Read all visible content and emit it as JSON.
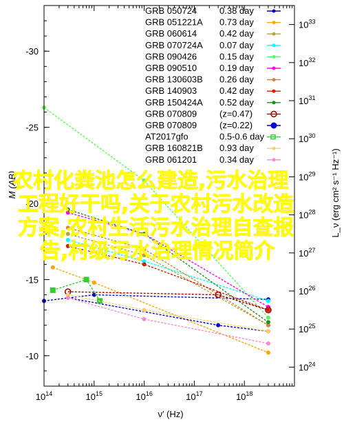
{
  "chart_data": {
    "type": "line",
    "title": "",
    "xlabel": "ν′ (Hz)",
    "ylabel_left": "M (AB)",
    "ylabel_right": "L_ν (erg cm² s⁻¹ Hz⁻¹)",
    "x_scale": "log",
    "xlim": [
      100000000000000.0,
      1e+19
    ],
    "x_ticks": [
      "10^14",
      "10^15",
      "10^16",
      "10^17",
      "10^18"
    ],
    "ylim_left": [
      -8,
      -33
    ],
    "y_ticks_left": [
      "-10",
      "-15",
      "-20",
      "-25",
      "-30"
    ],
    "y_ticks_right": [
      "10^24",
      "10^25",
      "10^26",
      "10^27",
      "10^28",
      "10^29",
      "10^30",
      "10^31",
      "10^32",
      "10^33"
    ],
    "grid": false,
    "legend_position": "top-right",
    "series": [
      {
        "name": "GRB 050724",
        "label": "0.38 day",
        "color": "#0000cc",
        "marker": "dot",
        "x": [
          100000000000000.0,
          1000000000000000.0,
          3e+18
        ],
        "y": [
          -13.6,
          -14.0,
          -13.7
        ]
      },
      {
        "name": "GRB 051221A",
        "label": "0.73 day",
        "color": "#ffa500",
        "marker": "dot",
        "x": [
          150000000000000.0,
          1000000000000000.0,
          3e+18
        ],
        "y": [
          -15.8,
          -14.8,
          -10.2
        ]
      },
      {
        "name": "GRB 060614",
        "label": "0.42 day",
        "color": "#b5a642",
        "marker": "dot",
        "x": [
          300000000000000.0,
          1e+16,
          3e+18
        ],
        "y": [
          -18.0,
          -16.6,
          -12.0
        ]
      },
      {
        "name": "GRB 070724A",
        "label": "0.07 day",
        "color": "#00ffff",
        "marker": "dot",
        "x": [
          300000000000000.0,
          1e+16,
          3e+18
        ],
        "y": [
          -17.6,
          -16.2,
          -13.6
        ]
      },
      {
        "name": "GRB 090426",
        "label": "0.15 day",
        "color": "#55ff55",
        "marker": "dot",
        "x": [
          100000000000000.0,
          1e+16,
          3e+18
        ],
        "y": [
          -26.3,
          -21.5,
          -12.5
        ]
      },
      {
        "name": "GRB 090510",
        "label": "0.19 day",
        "color": "#ff00ff",
        "marker": "dot",
        "x": [
          300000000000000.0,
          1e+16,
          3e+18
        ],
        "y": [
          -19.4,
          -18.0,
          -13.2
        ]
      },
      {
        "name": "GRB 130603B",
        "label": "0.26 day",
        "color": "#cd853f",
        "marker": "dot",
        "x": [
          300000000000000.0,
          1e+16,
          3e+18
        ],
        "y": [
          -18.4,
          -17.0,
          -12.0
        ]
      },
      {
        "name": "GRB 140903",
        "label": "0.42 day",
        "color": "#cc2200",
        "marker": "dot",
        "x": [
          300000000000000.0,
          1e+16,
          3e+18
        ],
        "y": [
          -17.2,
          -16.0,
          -13.0
        ]
      },
      {
        "name": "GRB 150424A",
        "label": "0.52 day",
        "color": "#228b22",
        "marker": "dot",
        "x": [
          300000000000000.0,
          1e+16,
          3e+18
        ],
        "y": [
          -19.6,
          -18.0,
          -12.2
        ]
      },
      {
        "name": "GRB 070809",
        "label": "(z=0.47)",
        "color": "#aa0000",
        "marker": "ring",
        "x": [
          300000000000000.0,
          3e+17,
          3e+18
        ],
        "y": [
          -14.2,
          -14.0,
          -13.0
        ]
      },
      {
        "name": "GRB 070809",
        "label": "(z=0.22)",
        "color": "#0000cc",
        "marker": "disc",
        "x": [
          300000000000000.0,
          3e+17,
          3e+18
        ],
        "y": [
          -13.8,
          -12.0,
          -11.6
        ]
      },
      {
        "name": "AT2017gfo",
        "label": "0.5-0.6 day",
        "color": "#33cc33",
        "marker": "square",
        "x": [
          150000000000000.0,
          700000000000000.0,
          1300000000000000.0
        ],
        "y": [
          -14.3,
          -15.0,
          -13.6
        ]
      },
      {
        "name": "GRB 160821B",
        "label": "0.93 day",
        "color": "#ffcc66",
        "marker": "dot",
        "x": [
          300000000000000.0,
          1e+16,
          3e+18
        ],
        "y": [
          -14.0,
          -13.0,
          -11.6
        ]
      },
      {
        "name": "GRB 061201",
        "label": "0.34 day",
        "color": "#ff88cc",
        "marker": "dot",
        "x": [
          300000000000000.0,
          1e+16,
          3e+18
        ],
        "y": [
          -13.8,
          -12.4,
          -10.8
        ]
      }
    ]
  },
  "overlay": {
    "lines": [
      "农村化粪池怎么建造,污水治理",
      "工程好干吗,关于农村污水改造",
      "方案,农村生活污水治理自查报",
      "告,村级污水治理情况简介"
    ]
  }
}
